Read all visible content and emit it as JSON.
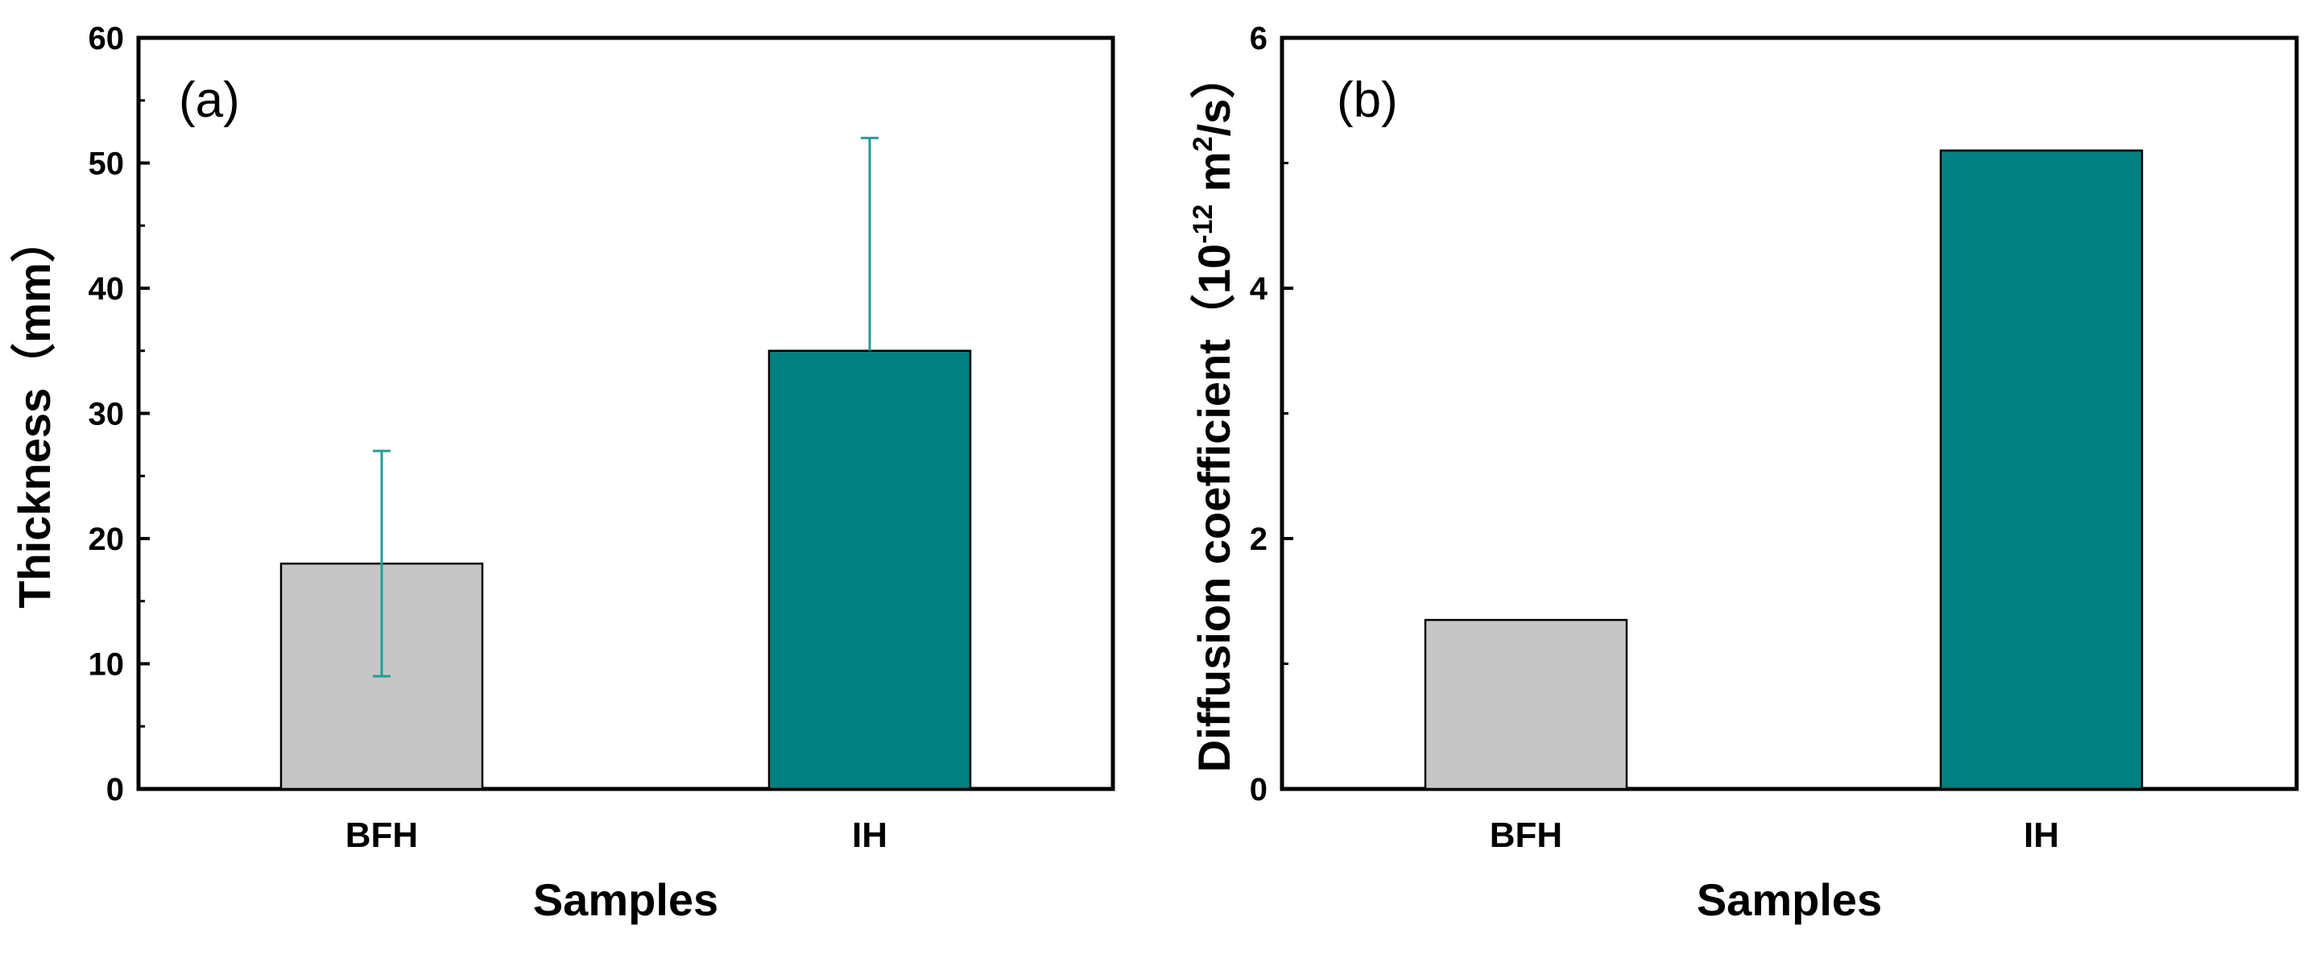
{
  "chart_data": [
    {
      "type": "bar",
      "panel_label": "(a)",
      "categories": [
        "BFH",
        "IH"
      ],
      "values": [
        18,
        35
      ],
      "error_high": [
        27,
        52
      ],
      "error_low": [
        9,
        null
      ],
      "xlabel": "Samples",
      "ylabel": "Thickness（mm）",
      "ylim": [
        0,
        60
      ],
      "yticks": [
        "0",
        "10",
        "20",
        "30",
        "40",
        "50",
        "60"
      ],
      "colors": [
        "#c6c6c6",
        "#008080"
      ],
      "error_color": "#2b9a9a",
      "grid": false
    },
    {
      "type": "bar",
      "panel_label": "(b)",
      "categories": [
        "BFH",
        "IH"
      ],
      "values": [
        1.35,
        5.1
      ],
      "xlabel": "Samples",
      "ylabel_main": "Diffusion coefficient（10",
      "ylabel_exp": "-12",
      "ylabel_unit": " m",
      "ylabel_sq": "2",
      "ylabel_tail": "/s）",
      "ylim": [
        0,
        6
      ],
      "yticks": [
        "0",
        "2",
        "4",
        "6"
      ],
      "colors": [
        "#c6c6c6",
        "#008080"
      ],
      "grid": false
    }
  ]
}
